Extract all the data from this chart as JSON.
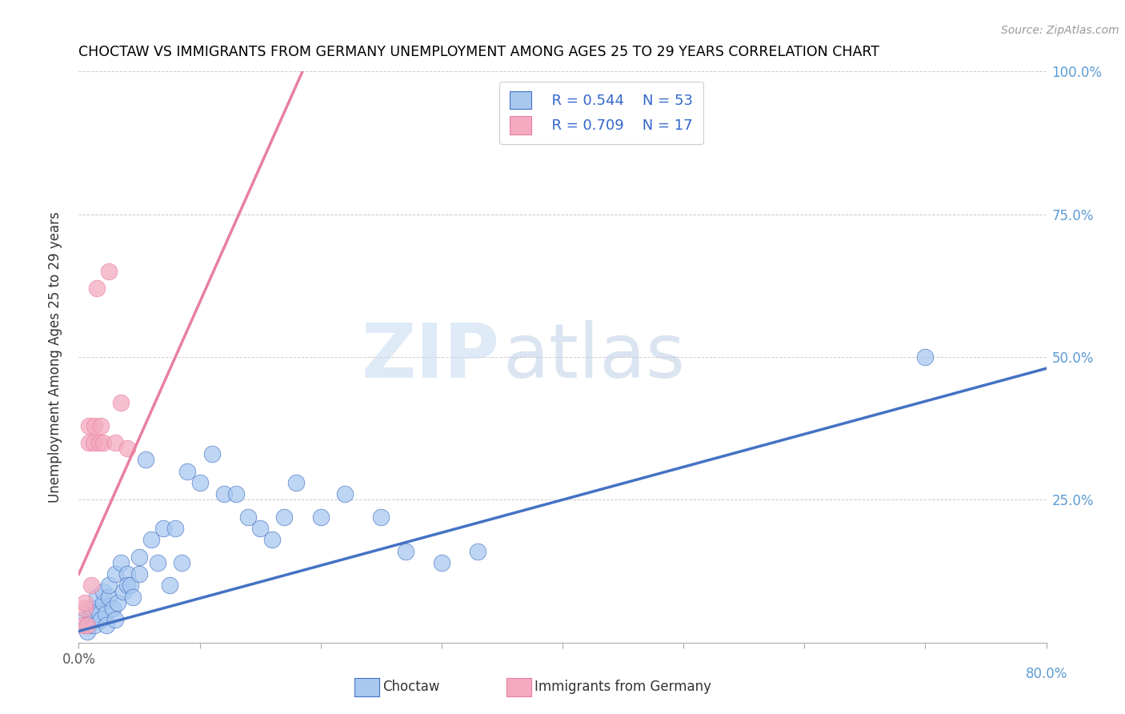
{
  "title": "CHOCTAW VS IMMIGRANTS FROM GERMANY UNEMPLOYMENT AMONG AGES 25 TO 29 YEARS CORRELATION CHART",
  "source": "Source: ZipAtlas.com",
  "ylabel": "Unemployment Among Ages 25 to 29 years",
  "xlim": [
    0,
    0.8
  ],
  "ylim": [
    0,
    1.0
  ],
  "legend_r1": "R = 0.544",
  "legend_n1": "N = 53",
  "legend_r2": "R = 0.709",
  "legend_n2": "N = 17",
  "blue_color": "#A8C8F0",
  "pink_color": "#F4AABF",
  "line_blue": "#4472C4",
  "line_pink": "#E87FA0",
  "right_tick_color": "#5B9BD5",
  "watermark_zip_color": "#C8DCF0",
  "watermark_atlas_color": "#B8CCE4",
  "blue_scatter_x": [
    0.005,
    0.007,
    0.008,
    0.01,
    0.01,
    0.012,
    0.013,
    0.015,
    0.015,
    0.017,
    0.018,
    0.02,
    0.02,
    0.022,
    0.023,
    0.025,
    0.025,
    0.028,
    0.03,
    0.03,
    0.032,
    0.035,
    0.037,
    0.04,
    0.04,
    0.043,
    0.045,
    0.05,
    0.05,
    0.055,
    0.06,
    0.065,
    0.07,
    0.075,
    0.08,
    0.085,
    0.09,
    0.1,
    0.11,
    0.12,
    0.13,
    0.14,
    0.15,
    0.16,
    0.17,
    0.18,
    0.2,
    0.22,
    0.25,
    0.27,
    0.3,
    0.33,
    0.7
  ],
  "blue_scatter_y": [
    0.04,
    0.02,
    0.03,
    0.05,
    0.06,
    0.04,
    0.03,
    0.06,
    0.08,
    0.05,
    0.04,
    0.07,
    0.09,
    0.05,
    0.03,
    0.08,
    0.1,
    0.06,
    0.04,
    0.12,
    0.07,
    0.14,
    0.09,
    0.12,
    0.1,
    0.1,
    0.08,
    0.15,
    0.12,
    0.32,
    0.18,
    0.14,
    0.2,
    0.1,
    0.2,
    0.14,
    0.3,
    0.28,
    0.33,
    0.26,
    0.26,
    0.22,
    0.2,
    0.18,
    0.22,
    0.28,
    0.22,
    0.26,
    0.22,
    0.16,
    0.14,
    0.16,
    0.5
  ],
  "pink_scatter_x": [
    0.003,
    0.005,
    0.005,
    0.007,
    0.008,
    0.008,
    0.01,
    0.012,
    0.013,
    0.015,
    0.017,
    0.018,
    0.02,
    0.025,
    0.03,
    0.035,
    0.04
  ],
  "pink_scatter_y": [
    0.03,
    0.06,
    0.07,
    0.03,
    0.35,
    0.38,
    0.1,
    0.35,
    0.38,
    0.62,
    0.35,
    0.38,
    0.35,
    0.65,
    0.35,
    0.42,
    0.34
  ],
  "blue_line_x": [
    0.0,
    0.8
  ],
  "blue_line_y": [
    0.02,
    0.48
  ],
  "pink_line_x": [
    0.0,
    0.185
  ],
  "pink_line_y": [
    0.12,
    1.0
  ]
}
